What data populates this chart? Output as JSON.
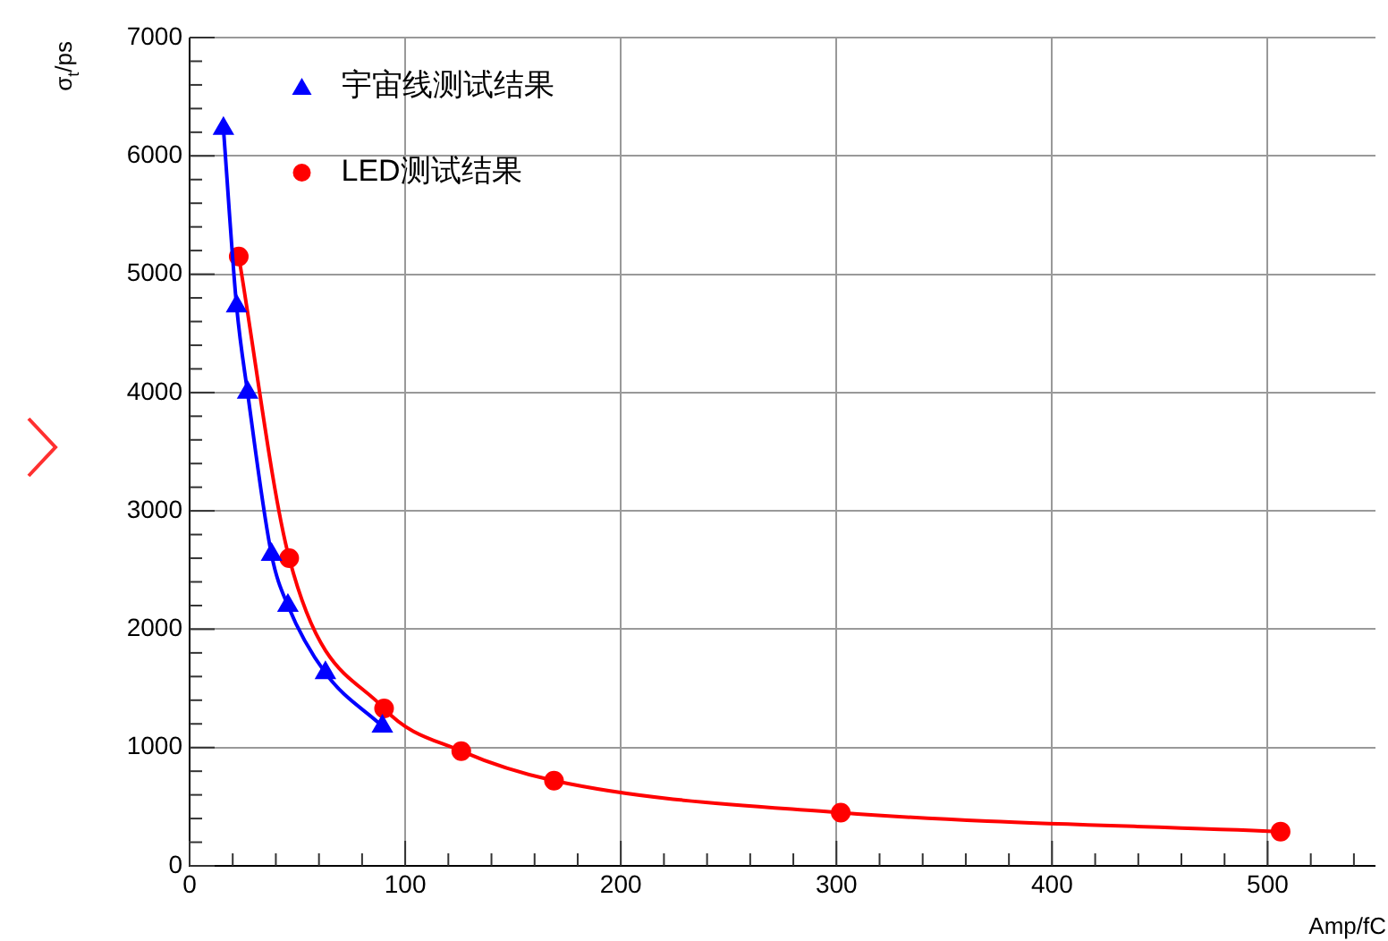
{
  "chart_data": {
    "type": "line",
    "xlabel": "Amp/fC",
    "ylabel": "σ$_{t}$/ps",
    "xlim": [
      0,
      550
    ],
    "xticks": [
      0,
      100,
      200,
      300,
      400,
      500
    ],
    "ylim": [
      0,
      7000
    ],
    "yticks": [
      0,
      1000,
      2000,
      3000,
      4000,
      5000,
      6000,
      7000
    ],
    "grid": true,
    "legend": "top",
    "series": [
      {
        "name": "宇宙线测试结果",
        "color": "#0000ff",
        "marker": "triangle",
        "x": [
          15.7,
          21.8,
          26.9,
          38,
          45.6,
          63,
          89.4
        ],
        "values": [
          6230,
          4730,
          4000,
          2630,
          2200,
          1630,
          1180
        ]
      },
      {
        "name": "LED测试结果",
        "color": "#ff0000",
        "marker": "circle",
        "x": [
          22.8,
          46.2,
          90.2,
          126,
          169,
          302,
          506
        ],
        "values": [
          5150,
          2600,
          1330,
          970,
          720,
          450,
          290
        ]
      }
    ]
  }
}
